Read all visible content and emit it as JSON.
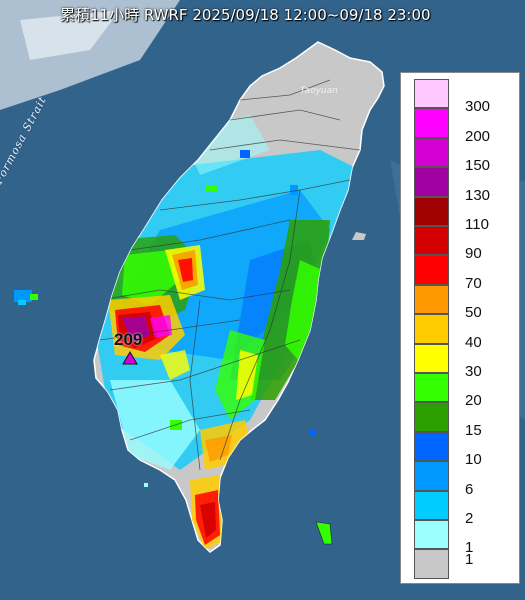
{
  "title": "累積11小時 RWRF 2025/09/18 12:00~09/18 23:00",
  "sea_label": "Formosa Strait",
  "city_label": "Taoyuan",
  "max_value_label": "209",
  "colors": {
    "sea": "#2f5f86",
    "land_dry": "#c8c8c8"
  },
  "legend": {
    "items": [
      {
        "label": "300",
        "color": "#ffc8ff"
      },
      {
        "label": "200",
        "color": "#ff00ff"
      },
      {
        "label": "150",
        "color": "#d400d4"
      },
      {
        "label": "130",
        "color": "#a000a0"
      },
      {
        "label": "110",
        "color": "#a00000"
      },
      {
        "label": "90",
        "color": "#d40000"
      },
      {
        "label": "70",
        "color": "#ff0000"
      },
      {
        "label": "50",
        "color": "#ff9900"
      },
      {
        "label": "40",
        "color": "#ffcc00"
      },
      {
        "label": "30",
        "color": "#ffff00"
      },
      {
        "label": "20",
        "color": "#33ff00"
      },
      {
        "label": "15",
        "color": "#2ba000"
      },
      {
        "label": "10",
        "color": "#0066ff"
      },
      {
        "label": "6",
        "color": "#0099ff"
      },
      {
        "label": "2",
        "color": "#00ccff"
      },
      {
        "label": "1",
        "color": "#99ffff"
      },
      {
        "label": "",
        "color": "#c8c8c8"
      }
    ]
  }
}
